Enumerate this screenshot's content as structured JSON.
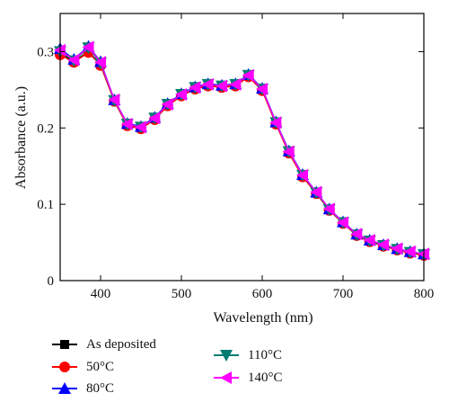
{
  "chart_data": {
    "type": "line",
    "title": "",
    "xlabel": "Wavelength (nm)",
    "ylabel": "Absorbance (a.u.)",
    "xlim": [
      350,
      800
    ],
    "ylim": [
      0,
      0.35
    ],
    "xticks": [
      400,
      500,
      600,
      700,
      800
    ],
    "yticks": [
      0,
      0.1,
      0.2,
      0.3
    ],
    "grid": false,
    "legend": "bottom",
    "x": [
      350,
      367,
      385,
      400,
      417,
      433,
      450,
      467,
      483,
      500,
      517,
      533,
      550,
      567,
      583,
      600,
      617,
      633,
      650,
      667,
      683,
      700,
      717,
      733,
      750,
      767,
      783,
      800
    ],
    "series": [
      {
        "name": "As deposited",
        "color": "#000000",
        "marker": "square",
        "values": [
          0.298,
          0.287,
          0.3,
          0.283,
          0.236,
          0.204,
          0.2,
          0.212,
          0.23,
          0.243,
          0.252,
          0.256,
          0.254,
          0.256,
          0.268,
          0.25,
          0.206,
          0.168,
          0.137,
          0.115,
          0.093,
          0.076,
          0.06,
          0.052,
          0.046,
          0.041,
          0.037,
          0.034
        ]
      },
      {
        "name": "50°C",
        "color": "#ff0000",
        "marker": "circle",
        "values": [
          0.296,
          0.286,
          0.299,
          0.282,
          0.235,
          0.203,
          0.199,
          0.211,
          0.229,
          0.242,
          0.251,
          0.255,
          0.253,
          0.255,
          0.267,
          0.249,
          0.205,
          0.167,
          0.136,
          0.114,
          0.092,
          0.075,
          0.059,
          0.051,
          0.045,
          0.04,
          0.036,
          0.033
        ]
      },
      {
        "name": "80°C",
        "color": "#0000ff",
        "marker": "triangle-up",
        "values": [
          0.304,
          0.29,
          0.307,
          0.287,
          0.237,
          0.206,
          0.202,
          0.214,
          0.232,
          0.245,
          0.254,
          0.258,
          0.256,
          0.258,
          0.27,
          0.252,
          0.208,
          0.17,
          0.139,
          0.116,
          0.094,
          0.077,
          0.061,
          0.053,
          0.047,
          0.042,
          0.038,
          0.035
        ]
      },
      {
        "name": "110°C",
        "color": "#007c72",
        "marker": "triangle-down",
        "values": [
          0.3,
          0.288,
          0.305,
          0.285,
          0.236,
          0.205,
          0.201,
          0.213,
          0.231,
          0.244,
          0.253,
          0.257,
          0.255,
          0.257,
          0.269,
          0.251,
          0.207,
          0.169,
          0.138,
          0.115,
          0.093,
          0.076,
          0.06,
          0.052,
          0.046,
          0.041,
          0.037,
          0.034
        ]
      },
      {
        "name": "140°C",
        "color": "#ff00ff",
        "marker": "triangle-left",
        "values": [
          0.302,
          0.289,
          0.306,
          0.286,
          0.237,
          0.205,
          0.201,
          0.213,
          0.231,
          0.244,
          0.253,
          0.257,
          0.255,
          0.257,
          0.269,
          0.251,
          0.207,
          0.169,
          0.138,
          0.116,
          0.094,
          0.076,
          0.061,
          0.053,
          0.047,
          0.042,
          0.038,
          0.035
        ]
      }
    ]
  }
}
